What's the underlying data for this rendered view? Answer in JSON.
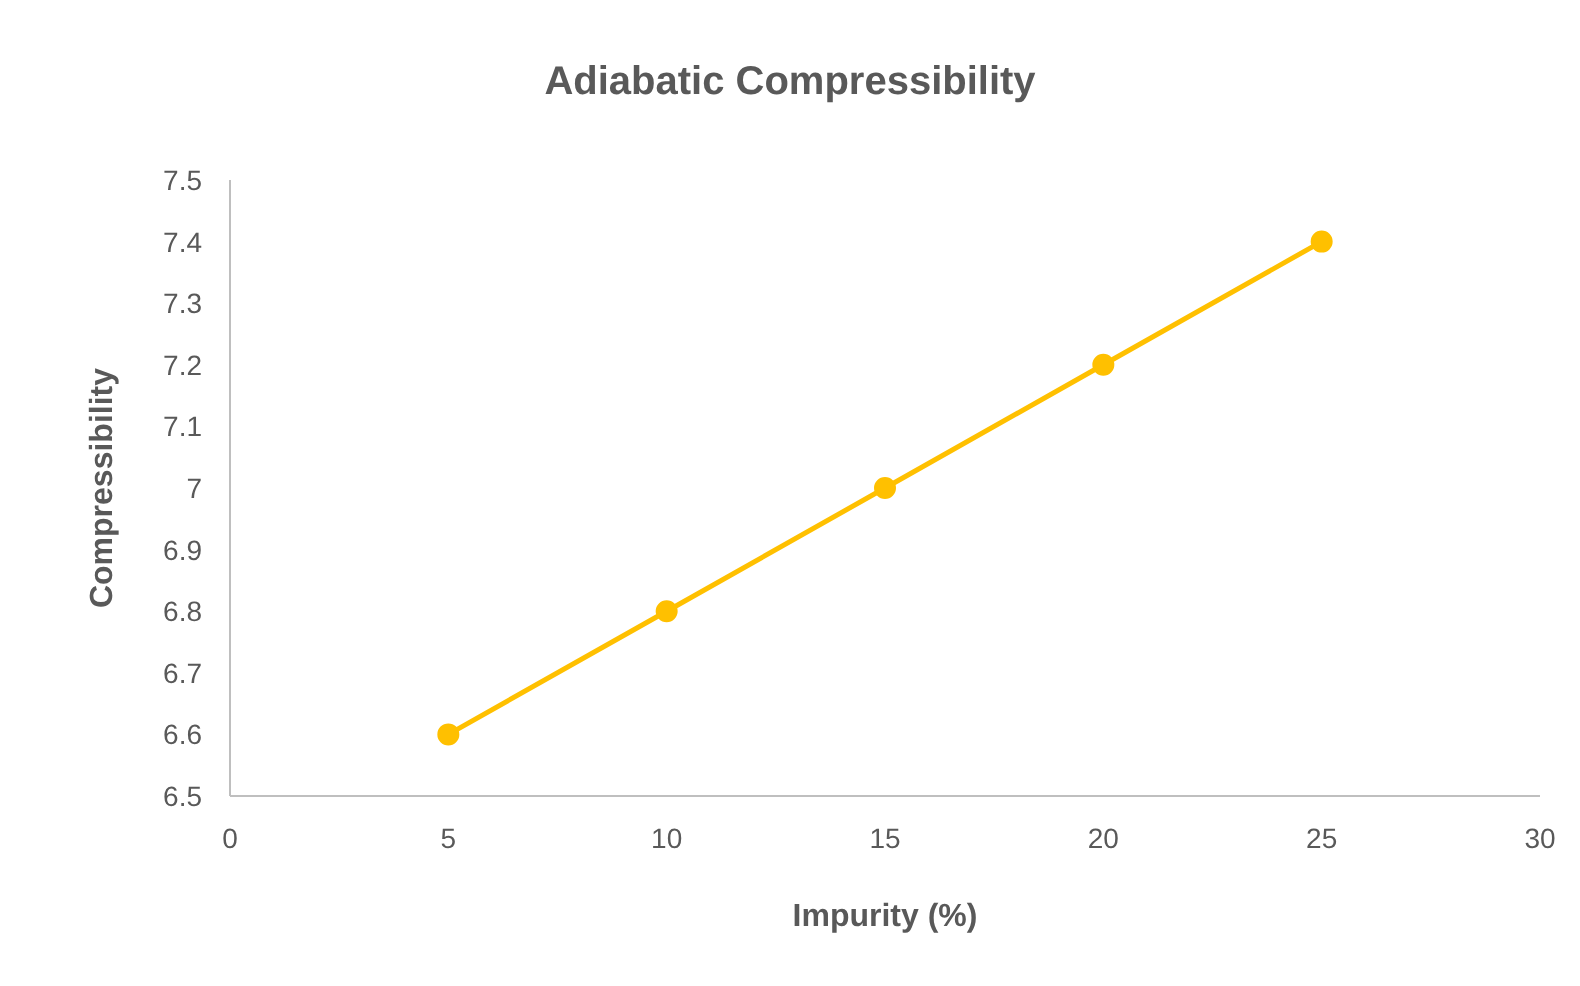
{
  "chart_data": {
    "type": "line",
    "title": "Adiabatic Compressibility",
    "xlabel": "Impurity (%)",
    "ylabel": "Compressibility",
    "x": [
      5,
      10,
      15,
      20,
      25
    ],
    "series": [
      {
        "color": "#ffc000",
        "values": [
          6.6,
          6.8,
          7.0,
          7.2,
          7.4
        ]
      }
    ],
    "xlim": [
      0,
      30
    ],
    "xticks": [
      0,
      5,
      10,
      15,
      20,
      25,
      30
    ],
    "ylim": [
      6.5,
      7.5
    ],
    "yticks": [
      6.5,
      6.6,
      6.7,
      6.8,
      6.9,
      7,
      7.1,
      7.2,
      7.3,
      7.4,
      7.5
    ],
    "grid": false,
    "legend": false,
    "marker": "circle",
    "line_style": "solid"
  }
}
